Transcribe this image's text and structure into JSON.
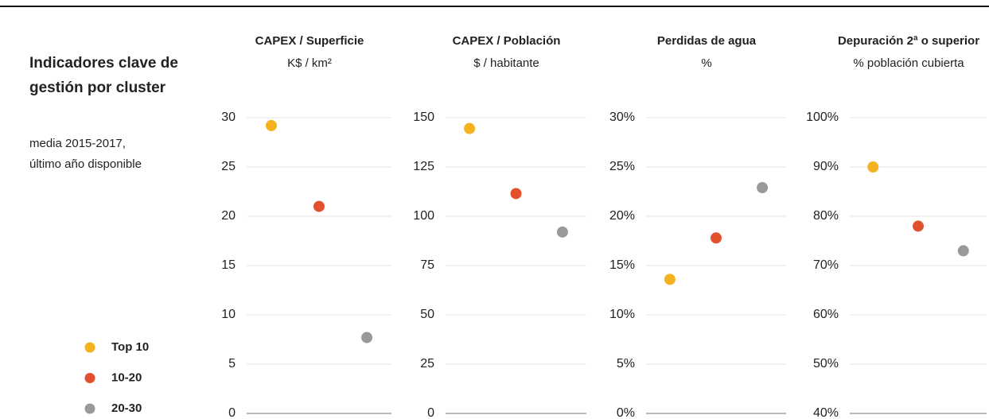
{
  "title": [
    "Indicadores clave de",
    "gestión por cluster"
  ],
  "subtitle": [
    "media 2015-2017,",
    "último año disponible"
  ],
  "chart_data": [
    {
      "type": "dot",
      "title": "CAPEX / Superficie",
      "subtitle": "K$ / km²",
      "ylim": [
        0,
        30
      ],
      "yticks": [
        0,
        5,
        10,
        15,
        20,
        25,
        30
      ],
      "grid": true,
      "series": [
        {
          "name": "Top 10",
          "color": "#f5b21f",
          "values": [
            29.2
          ]
        },
        {
          "name": "10-20",
          "color": "#e2512d",
          "values": [
            21
          ]
        },
        {
          "name": "20-30",
          "color": "#999999",
          "values": [
            7.7
          ]
        }
      ]
    },
    {
      "type": "dot",
      "title": "CAPEX / Población",
      "subtitle": "$ / habitante",
      "ylim": [
        0,
        150
      ],
      "yticks": [
        0,
        25,
        50,
        75,
        100,
        125,
        150
      ],
      "grid": true,
      "series": [
        {
          "name": "Top 10",
          "color": "#f5b21f",
          "values": [
            144.5
          ]
        },
        {
          "name": "10-20",
          "color": "#e2512d",
          "values": [
            111.5
          ]
        },
        {
          "name": "20-30",
          "color": "#999999",
          "values": [
            92
          ]
        }
      ]
    },
    {
      "type": "dot",
      "title": "Perdidas de agua",
      "subtitle": "%",
      "ylim": [
        0,
        30
      ],
      "yticks": [
        {
          "value": 0,
          "label": "0%"
        },
        {
          "value": 5,
          "label": "5%"
        },
        {
          "value": 10,
          "label": "10%"
        },
        {
          "value": 15,
          "label": "15%"
        },
        {
          "value": 20,
          "label": "20%"
        },
        {
          "value": 25,
          "label": "25%"
        },
        {
          "value": 30,
          "label": "30%"
        }
      ],
      "grid": true,
      "series": [
        {
          "name": "Top 10",
          "color": "#f5b21f",
          "values": [
            13.6
          ]
        },
        {
          "name": "10-20",
          "color": "#e2512d",
          "values": [
            17.8
          ]
        },
        {
          "name": "20-30",
          "color": "#999999",
          "values": [
            22.9
          ]
        }
      ]
    },
    {
      "type": "dot",
      "title": "Depuración 2ª o superior",
      "subtitle": "% población cubierta",
      "ylim": [
        40,
        100
      ],
      "yticks": [
        {
          "value": 40,
          "label": "40%"
        },
        {
          "value": 50,
          "label": "50%"
        },
        {
          "value": 60,
          "label": "60%"
        },
        {
          "value": 70,
          "label": "70%"
        },
        {
          "value": 80,
          "label": "80%"
        },
        {
          "value": 90,
          "label": "90%"
        },
        {
          "value": 100,
          "label": "100%"
        }
      ],
      "grid": true,
      "series": [
        {
          "name": "Top 10",
          "color": "#f5b21f",
          "values": [
            90
          ]
        },
        {
          "name": "10-20",
          "color": "#e2512d",
          "values": [
            78
          ]
        },
        {
          "name": "20-30",
          "color": "#999999",
          "values": [
            73
          ]
        }
      ]
    }
  ]
}
